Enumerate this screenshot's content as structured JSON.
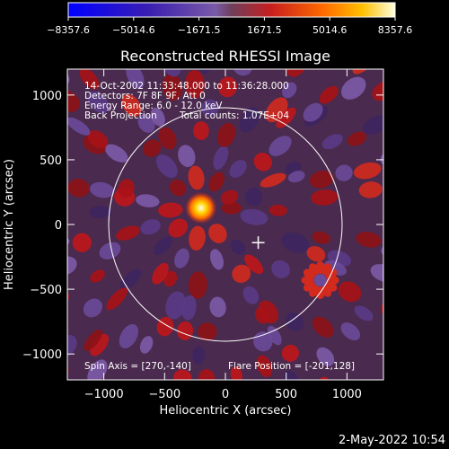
{
  "colorbar": {
    "ticks": [
      "-8357.6",
      "-5014.6",
      "-1671.5",
      "1671.5",
      "5014.6",
      "8357.6"
    ],
    "min": -8357.6,
    "max": 8357.6
  },
  "chart_data": {
    "type": "heatmap",
    "title": "Reconstructed RHESSI Image",
    "xlabel": "Heliocentric X (arcsec)",
    "ylabel": "Heliocentric Y (arcsec)",
    "xlim": [
      -1300,
      1300
    ],
    "ylim": [
      -1200,
      1200
    ],
    "xticks": [
      -1000,
      -500,
      0,
      500,
      1000
    ],
    "yticks": [
      -1000,
      -500,
      0,
      500,
      1000
    ],
    "xtick_labels": [
      "−1000",
      "−500",
      "0",
      "500",
      "1000"
    ],
    "ytick_labels": [
      "1000",
      "500",
      "0",
      "−500",
      "−1000"
    ],
    "annotations": {
      "time_range": "14-Oct-2002 11:33:48.000 to 11:36:28.000",
      "detectors": "Detectors: 7F 8F 9F, Att 0",
      "energy_range": "Energy Range: 6.0 - 12.0 keV",
      "method": "Back Projection",
      "total_counts": "Total counts: 1.07E+04",
      "spin_axis": "Spin Axis = [270,-140]",
      "flare_position": "Flare Position = [-201,128]"
    },
    "solar_limb_radius": 960,
    "flare_center": [
      -201,
      128
    ],
    "spin_axis": [
      270,
      -140
    ]
  },
  "footer": {
    "date": "2-May-2022 10:54"
  }
}
